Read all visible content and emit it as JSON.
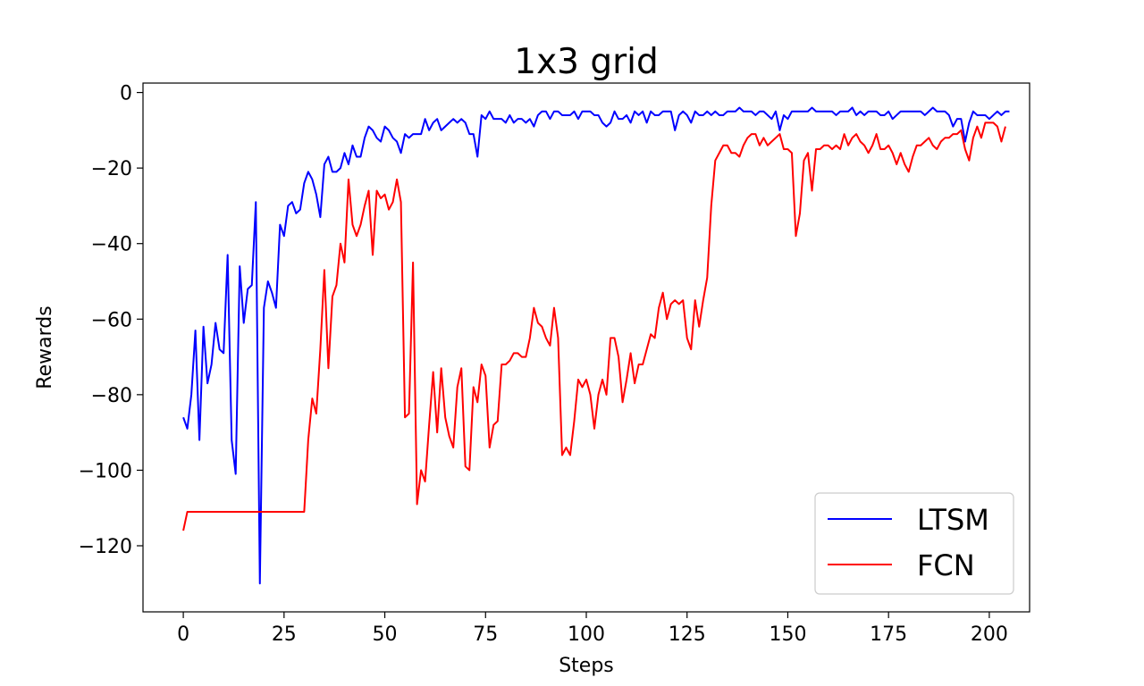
{
  "chart_data": {
    "type": "line",
    "title": "1x3 grid",
    "xlabel": "Steps",
    "ylabel": "Rewards",
    "xlim": [
      -10,
      210
    ],
    "ylim": [
      -137.5,
      2.5
    ],
    "xticks": [
      0,
      25,
      50,
      75,
      100,
      125,
      150,
      175,
      200
    ],
    "yticks": [
      0,
      -20,
      -40,
      -60,
      -80,
      -100,
      -120
    ],
    "legend_position": "bottom-right",
    "grid": false,
    "series": [
      {
        "name": "LTSM",
        "color": "#0000ff",
        "values": [
          -86,
          -89,
          -80,
          -63,
          -92,
          -62,
          -77,
          -72,
          -61,
          -68,
          -69,
          -43,
          -92,
          -101,
          -46,
          -61,
          -52,
          -51,
          -29,
          -130,
          -57,
          -50,
          -53,
          -57,
          -35,
          -38,
          -30,
          -29,
          -32,
          -31,
          -24,
          -21,
          -23,
          -27,
          -33,
          -19,
          -17,
          -21,
          -21,
          -20,
          -16,
          -19,
          -14,
          -17,
          -17,
          -12,
          -9,
          -10,
          -12,
          -13,
          -9,
          -10,
          -12,
          -13,
          -16,
          -11,
          -12,
          -11,
          -11,
          -11,
          -7,
          -10,
          -8,
          -7,
          -10,
          -9,
          -8,
          -7,
          -8,
          -7,
          -8,
          -11,
          -11,
          -17,
          -6,
          -7,
          -5,
          -7,
          -7,
          -7,
          -8,
          -6,
          -8,
          -7,
          -7,
          -8,
          -7,
          -9,
          -6,
          -5,
          -5,
          -7,
          -5,
          -5,
          -6,
          -6,
          -6,
          -5,
          -7,
          -5,
          -5,
          -5,
          -6,
          -6,
          -8,
          -9,
          -8,
          -5,
          -7,
          -7,
          -6,
          -8,
          -5,
          -6,
          -5,
          -8,
          -5,
          -6,
          -6,
          -5,
          -5,
          -5,
          -10,
          -6,
          -5,
          -6,
          -8,
          -5,
          -6,
          -6,
          -5,
          -6,
          -5,
          -6,
          -6,
          -5,
          -5,
          -5,
          -4,
          -5,
          -5,
          -5,
          -6,
          -5,
          -5,
          -6,
          -7,
          -5,
          -10,
          -6,
          -7,
          -5,
          -5,
          -5,
          -5,
          -5,
          -4,
          -5,
          -5,
          -5,
          -5,
          -5,
          -6,
          -5,
          -5,
          -5,
          -4,
          -6,
          -5,
          -6,
          -5,
          -5,
          -5,
          -6,
          -6,
          -5,
          -7,
          -6,
          -5,
          -5,
          -5,
          -5,
          -5,
          -5,
          -6,
          -5,
          -4,
          -5,
          -5,
          -5,
          -6,
          -9,
          -7,
          -7,
          -13,
          -8,
          -5,
          -6,
          -6,
          -6,
          -7,
          -6,
          -5,
          -6,
          -5,
          -5
        ]
      },
      {
        "name": "FCN",
        "color": "#ff0000",
        "values": [
          -116,
          -111,
          -111,
          -111,
          -111,
          -111,
          -111,
          -111,
          -111,
          -111,
          -111,
          -111,
          -111,
          -111,
          -111,
          -111,
          -111,
          -111,
          -111,
          -111,
          -111,
          -111,
          -111,
          -111,
          -111,
          -111,
          -111,
          -111,
          -111,
          -111,
          -111,
          -92,
          -81,
          -85,
          -68,
          -47,
          -73,
          -54,
          -51,
          -40,
          -45,
          -23,
          -35,
          -38,
          -35,
          -30,
          -26,
          -43,
          -26,
          -28,
          -27,
          -31,
          -29,
          -23,
          -29,
          -86,
          -85,
          -45,
          -109,
          -100,
          -103,
          -88,
          -74,
          -90,
          -73,
          -86,
          -91,
          -94,
          -78,
          -73,
          -99,
          -100,
          -78,
          -82,
          -72,
          -75,
          -94,
          -88,
          -87,
          -72,
          -72,
          -71,
          -69,
          -69,
          -70,
          -70,
          -65,
          -57,
          -61,
          -62,
          -65,
          -67,
          -57,
          -65,
          -96,
          -94,
          -96,
          -87,
          -76,
          -78,
          -76,
          -80,
          -89,
          -80,
          -76,
          -80,
          -65,
          -65,
          -70,
          -82,
          -76,
          -69,
          -77,
          -72,
          -72,
          -68,
          -64,
          -65,
          -57,
          -53,
          -60,
          -56,
          -55,
          -56,
          -55,
          -65,
          -68,
          -55,
          -62,
          -55,
          -49,
          -30,
          -18,
          -16,
          -14,
          -14,
          -16,
          -16,
          -17,
          -14,
          -12,
          -11,
          -11,
          -14,
          -12,
          -14,
          -13,
          -12,
          -11,
          -15,
          -15,
          -16,
          -38,
          -32,
          -18,
          -16,
          -26,
          -15,
          -15,
          -14,
          -14,
          -15,
          -14,
          -15,
          -11,
          -14,
          -12,
          -11,
          -13,
          -14,
          -16,
          -14,
          -11,
          -15,
          -15,
          -14,
          -16,
          -19,
          -16,
          -19,
          -21,
          -17,
          -14,
          -14,
          -13,
          -12,
          -14,
          -15,
          -13,
          -12,
          -12,
          -11,
          -11,
          -10,
          -15,
          -18,
          -12,
          -9,
          -12,
          -8,
          -8,
          -8,
          -9,
          -13,
          -9
        ]
      }
    ]
  }
}
